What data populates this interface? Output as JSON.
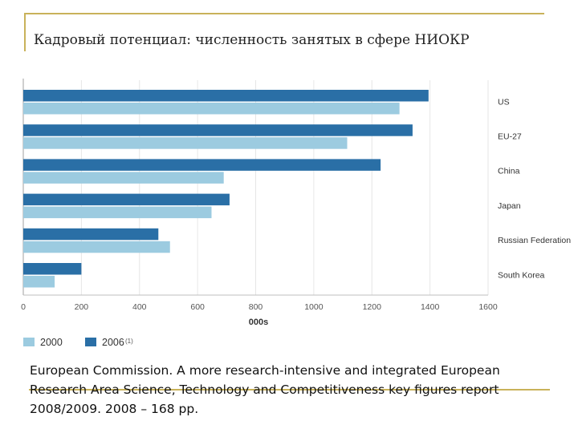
{
  "title": "Кадровый потенциал: численность занятых в сфере НИОКР",
  "caption": "European Commission. A more research-intensive and integrated European Research Area Science, Technology and Competitiveness key figures report 2008/2009. 2008 – 168 pp.",
  "chart_data": {
    "type": "bar",
    "orientation": "horizontal",
    "categories": [
      "US",
      "EU-27",
      "China",
      "Japan",
      "Russian Federation",
      "South Korea"
    ],
    "series": [
      {
        "name": "2006",
        "footnote": "(1)",
        "color": "#2a6fa6",
        "values": [
          1395,
          1340,
          1230,
          710,
          465,
          200
        ]
      },
      {
        "name": "2000",
        "color": "#9ccbe0",
        "values": [
          1295,
          1115,
          690,
          648,
          505,
          108
        ]
      }
    ],
    "xlim": [
      0,
      1600
    ],
    "xticks": [
      "0",
      "200",
      "400",
      "600",
      "800",
      "1000",
      "1200",
      "1400",
      "1600"
    ],
    "xlabel": "000s",
    "legend_order": [
      "2000",
      "2006"
    ],
    "legend_position": "bottom-left",
    "grid": "vertical"
  }
}
